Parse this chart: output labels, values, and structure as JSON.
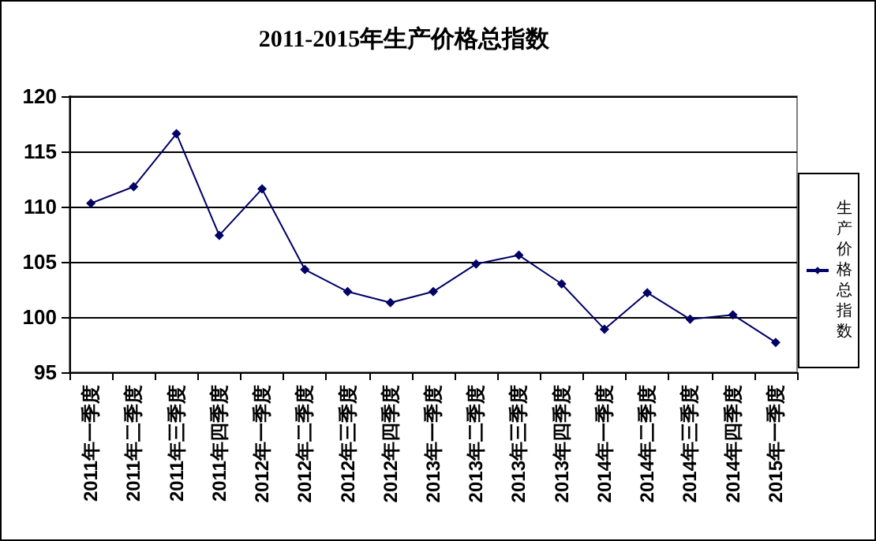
{
  "chart_data": {
    "type": "line",
    "title": "2011-2015年生产价格总指数",
    "categories": [
      "2011年一季度",
      "2011年二季度",
      "2011年三季度",
      "2011年四季度",
      "2012年一季度",
      "2012年二季度",
      "2012年三季度",
      "2012年四季度",
      "2013年一季度",
      "2013年二季度",
      "2013年三季度",
      "2013年四季度",
      "2014年一季度",
      "2014年二季度",
      "2014年三季度",
      "2014年四季度",
      "2015年一季度"
    ],
    "series": [
      {
        "name": "生产价格总指数",
        "color": "#000066",
        "values": [
          110.3,
          111.8,
          116.6,
          107.4,
          111.6,
          104.3,
          102.3,
          101.3,
          102.3,
          104.8,
          105.6,
          103.0,
          98.9,
          102.2,
          99.8,
          100.2,
          97.7
        ]
      }
    ],
    "ylim": [
      95,
      120
    ],
    "yticks": [
      95,
      100,
      105,
      110,
      115,
      120
    ],
    "grid": "y",
    "legend": "right",
    "marker": "diamond",
    "line_style": "solid"
  }
}
